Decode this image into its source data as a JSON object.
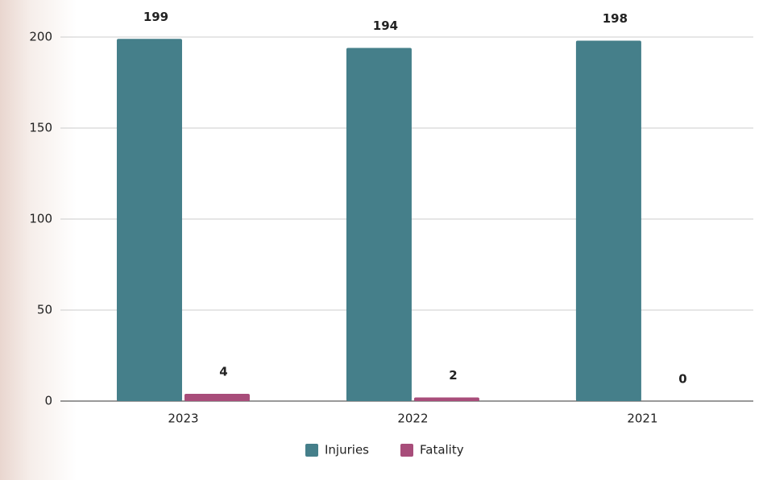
{
  "chart_data": {
    "type": "bar",
    "categories": [
      "2023",
      "2022",
      "2021"
    ],
    "series": [
      {
        "name": "Injuries",
        "color": "#457f8a",
        "values": [
          199,
          194,
          198
        ]
      },
      {
        "name": "Fatality",
        "color": "#a84d7a",
        "values": [
          4,
          2,
          0
        ]
      }
    ],
    "ylim": [
      0,
      200
    ],
    "yticks": [
      0,
      50,
      100,
      150,
      200
    ],
    "grid": true,
    "legend": "bottom"
  }
}
